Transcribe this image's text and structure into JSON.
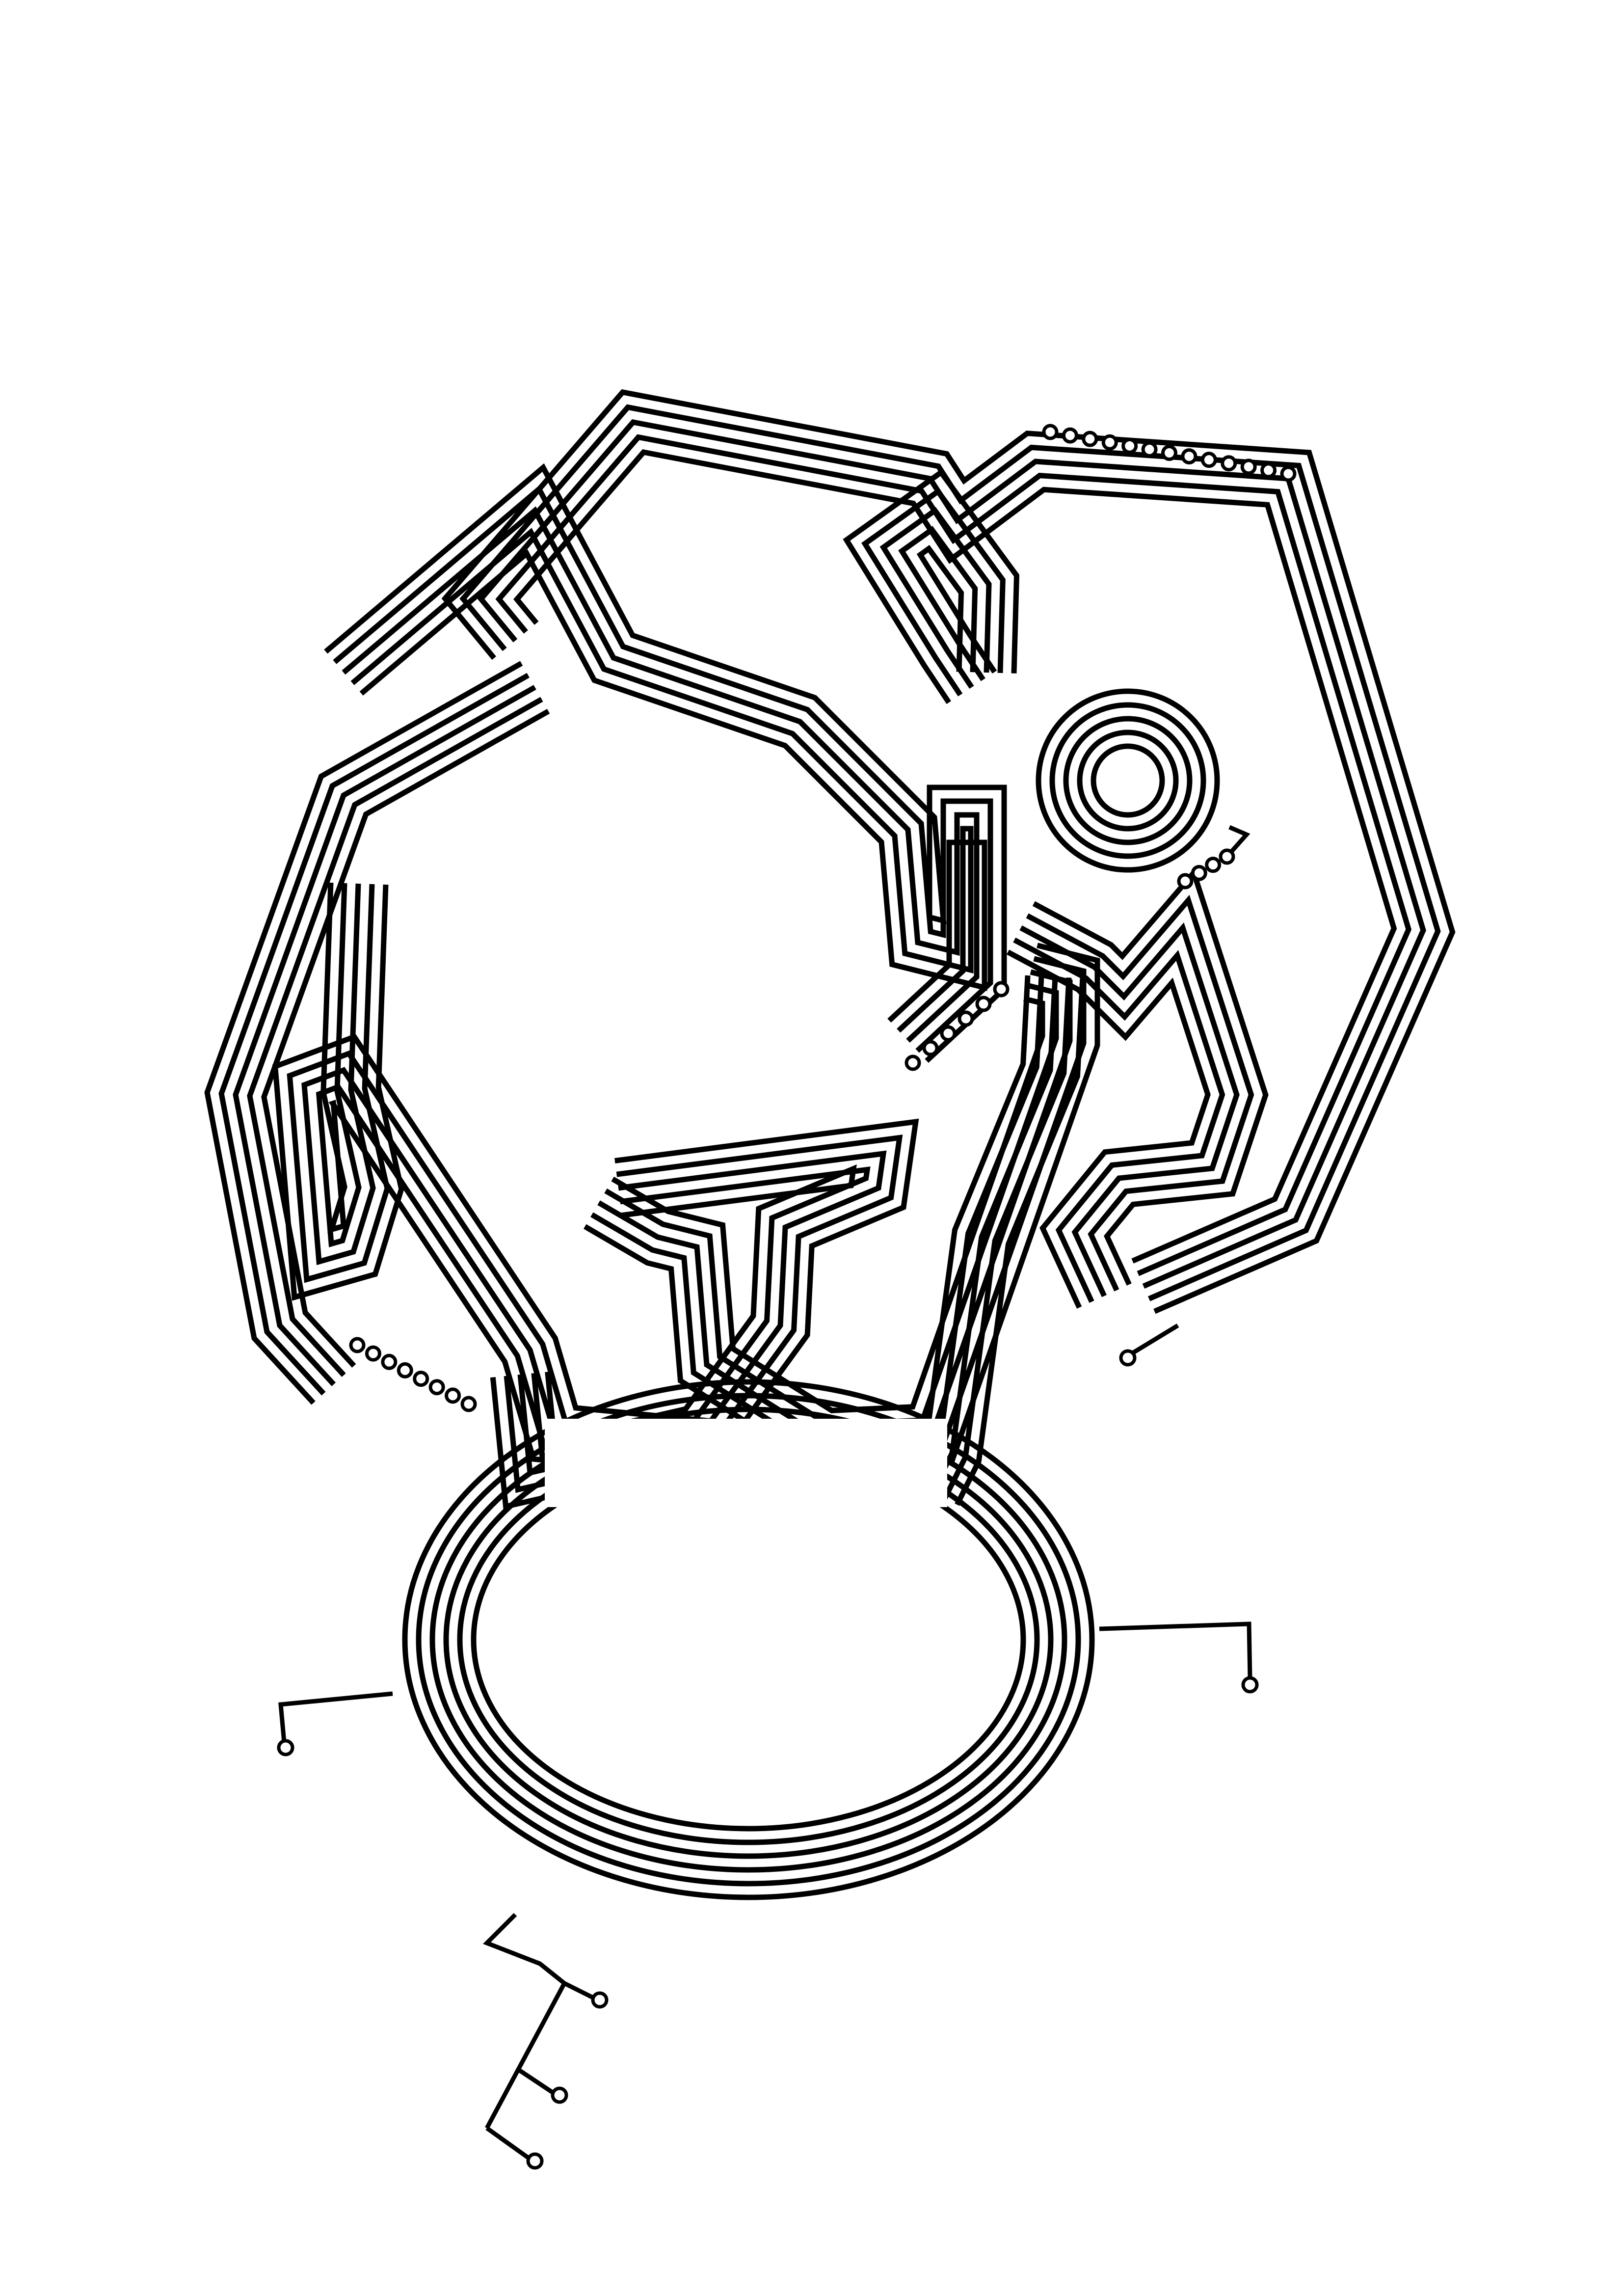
{
  "canvas": {
    "background": "#ffffff",
    "ink": "#000000"
  },
  "artwork": {
    "style": "single-line maze / circuit-trace illustration",
    "elements": [
      {
        "name": "head-outline-bundle",
        "strands": 5
      },
      {
        "name": "left-arm-bundle",
        "strands": 5
      },
      {
        "name": "right-arm-bundle",
        "strands": 5
      },
      {
        "name": "center-x-bundle",
        "strands": 5
      },
      {
        "name": "right-leg-bundle",
        "strands": 5
      },
      {
        "name": "eye-coil",
        "rings": 5
      },
      {
        "name": "base-ring",
        "rings": 6
      },
      {
        "name": "bead-chain-terminals",
        "count": 5
      },
      {
        "name": "side-leads",
        "count": 5
      }
    ]
  }
}
